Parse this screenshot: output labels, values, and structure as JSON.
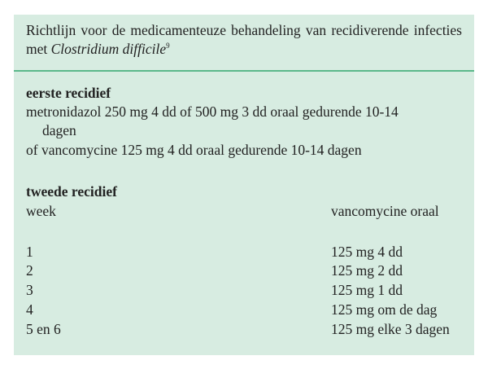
{
  "caption": {
    "text": "Richtlijn voor de medicamenteuze behandeling van recidiverende infecties met ",
    "italic": "Clostridium difficile",
    "ref": "9"
  },
  "first": {
    "heading": "eerste recidief",
    "line1": "metronidazol 250 mg 4 dd of 500 mg 3 dd oraal gedurende 10-14",
    "line1_cont": "dagen",
    "line2": "of vancomycine 125 mg 4 dd oraal gedurende 10-14 dagen"
  },
  "second": {
    "heading": "tweede recidief",
    "columns": [
      "week",
      "vancomycine oraal"
    ],
    "rows": [
      [
        "1",
        "125 mg 4 dd"
      ],
      [
        "2",
        "125 mg 2 dd"
      ],
      [
        "3",
        "125 mg 1 dd"
      ],
      [
        "4",
        "125 mg om de dag"
      ],
      [
        "5 en 6",
        "125 mg elke 3 dagen"
      ]
    ]
  },
  "colors": {
    "background": "#d7ece1",
    "rule": "#5bb88b"
  }
}
